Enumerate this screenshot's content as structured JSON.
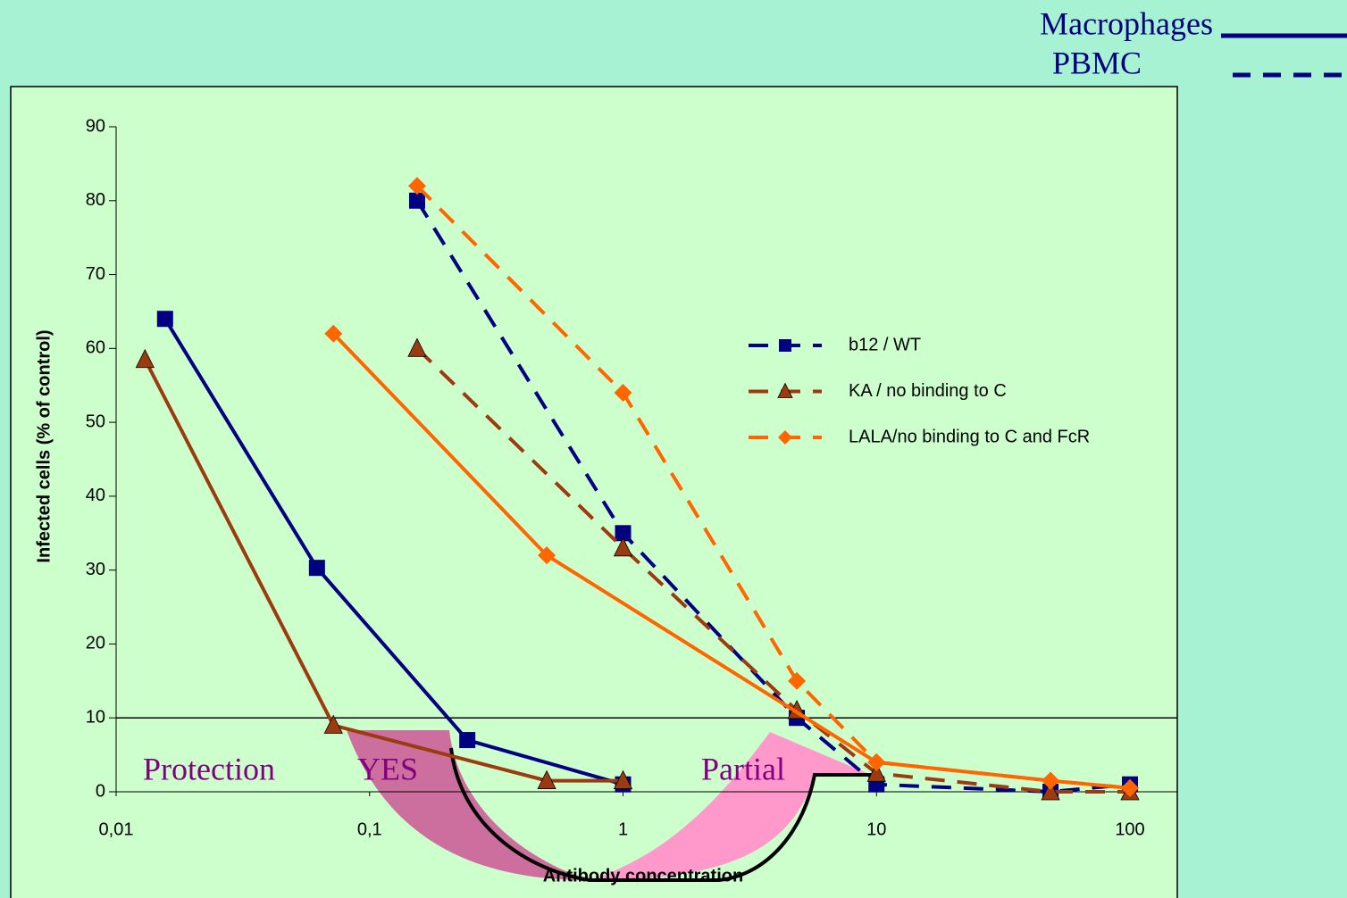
{
  "chart_data": {
    "type": "line",
    "log_x": true,
    "x_label": "Antibody concentration",
    "y_label": "Infected cells (% of control)",
    "xlim": [
      0.01,
      100
    ],
    "xticks": [
      {
        "value": 0.01,
        "label": "0,01"
      },
      {
        "value": 0.1,
        "label": "0,1"
      },
      1,
      10,
      100
    ],
    "ylim": [
      0,
      90
    ],
    "yticks": [
      0,
      10,
      20,
      30,
      40,
      50,
      60,
      70,
      80,
      90
    ],
    "reference_line": 10,
    "line_styles": [
      {
        "label": "Macrophages",
        "dashed": false
      },
      {
        "label": "PBMC",
        "dashed": true
      }
    ],
    "series": [
      {
        "name": "b12 / WT",
        "color": "#000080",
        "marker": "square",
        "lines": [
          {
            "style": 0,
            "x": [
              0.0156,
              0.062,
              0.243,
              1
            ],
            "values": [
              64,
              30.3,
              7,
              1
            ]
          },
          {
            "style": 1,
            "x": [
              0.154,
              1,
              4.85,
              10,
              48.6,
              100
            ],
            "values": [
              80,
              35,
              10,
              1,
              0,
              1
            ]
          }
        ]
      },
      {
        "name": "KA / no binding to C",
        "color": "#9c3a10",
        "marker": "triangle",
        "lines": [
          {
            "style": 0,
            "x": [
              0.013,
              0.072,
              0.5,
              1
            ],
            "values": [
              58.5,
              9,
              1.5,
              1.5
            ]
          },
          {
            "style": 1,
            "x": [
              0.154,
              1,
              4.85,
              10,
              48.6,
              100
            ],
            "values": [
              60,
              33,
              11,
              2.5,
              0,
              0
            ]
          }
        ]
      },
      {
        "name": "LALA/no binding to C and FcR",
        "color": "#ff6600",
        "marker": "diamond",
        "lines": [
          {
            "style": 0,
            "x": [
              0.072,
              0.5,
              10,
              48.6,
              100
            ],
            "values": [
              62,
              32,
              4,
              1.5,
              0.5
            ]
          },
          {
            "style": 1,
            "x": [
              0.154,
              1,
              4.85,
              10,
              48.6,
              100
            ],
            "values": [
              82,
              54,
              15,
              4,
              1.5,
              0.5
            ]
          }
        ]
      }
    ],
    "annotations": [
      "Protection",
      "YES",
      "Partial"
    ]
  }
}
